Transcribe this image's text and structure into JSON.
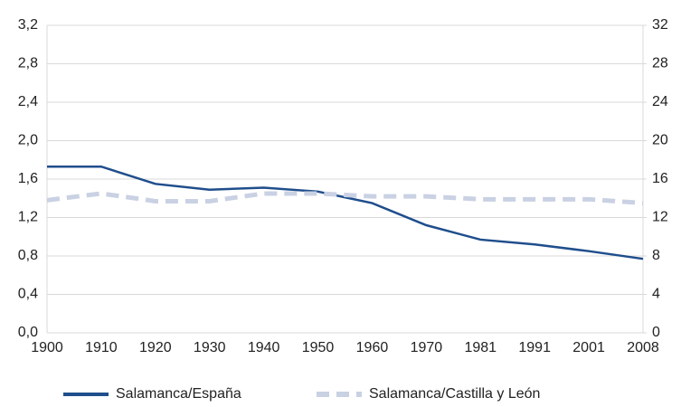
{
  "chart_data": {
    "type": "line",
    "categories": [
      "1900",
      "1910",
      "1920",
      "1930",
      "1940",
      "1950",
      "1960",
      "1970",
      "1981",
      "1991",
      "2001",
      "2008"
    ],
    "series": [
      {
        "name": "Salamanca/España",
        "color": "#1f4e8c",
        "values": [
          1.73,
          1.73,
          1.55,
          1.49,
          1.51,
          1.47,
          1.35,
          1.12,
          0.97,
          0.92,
          0.85,
          0.77
        ]
      },
      {
        "name": "Salamanca/Castilla y León",
        "color": "#c9d1e3",
        "axis": "y2",
        "dashed": true,
        "values": [
          13.8,
          14.5,
          13.7,
          13.7,
          14.5,
          14.5,
          14.2,
          14.2,
          13.9,
          13.9,
          13.9,
          13.5
        ]
      }
    ],
    "ylim": [
      0,
      3.2
    ],
    "yticks": [
      {
        "value": 0,
        "label": "0,0"
      },
      {
        "value": 0.4,
        "label": "0,4"
      },
      {
        "value": 0.8,
        "label": "0,8"
      },
      {
        "value": 1.2,
        "label": "1,2"
      },
      {
        "value": 1.6,
        "label": "1,6"
      },
      {
        "value": 2.0,
        "label": "2,0"
      },
      {
        "value": 2.4,
        "label": "2,4"
      },
      {
        "value": 2.8,
        "label": "2,8"
      },
      {
        "value": 3.2,
        "label": "3,2"
      }
    ],
    "y2lim": [
      0,
      32
    ],
    "y2ticks": [
      0,
      4,
      8,
      12,
      16,
      20,
      24,
      28,
      32
    ],
    "grid": true
  }
}
